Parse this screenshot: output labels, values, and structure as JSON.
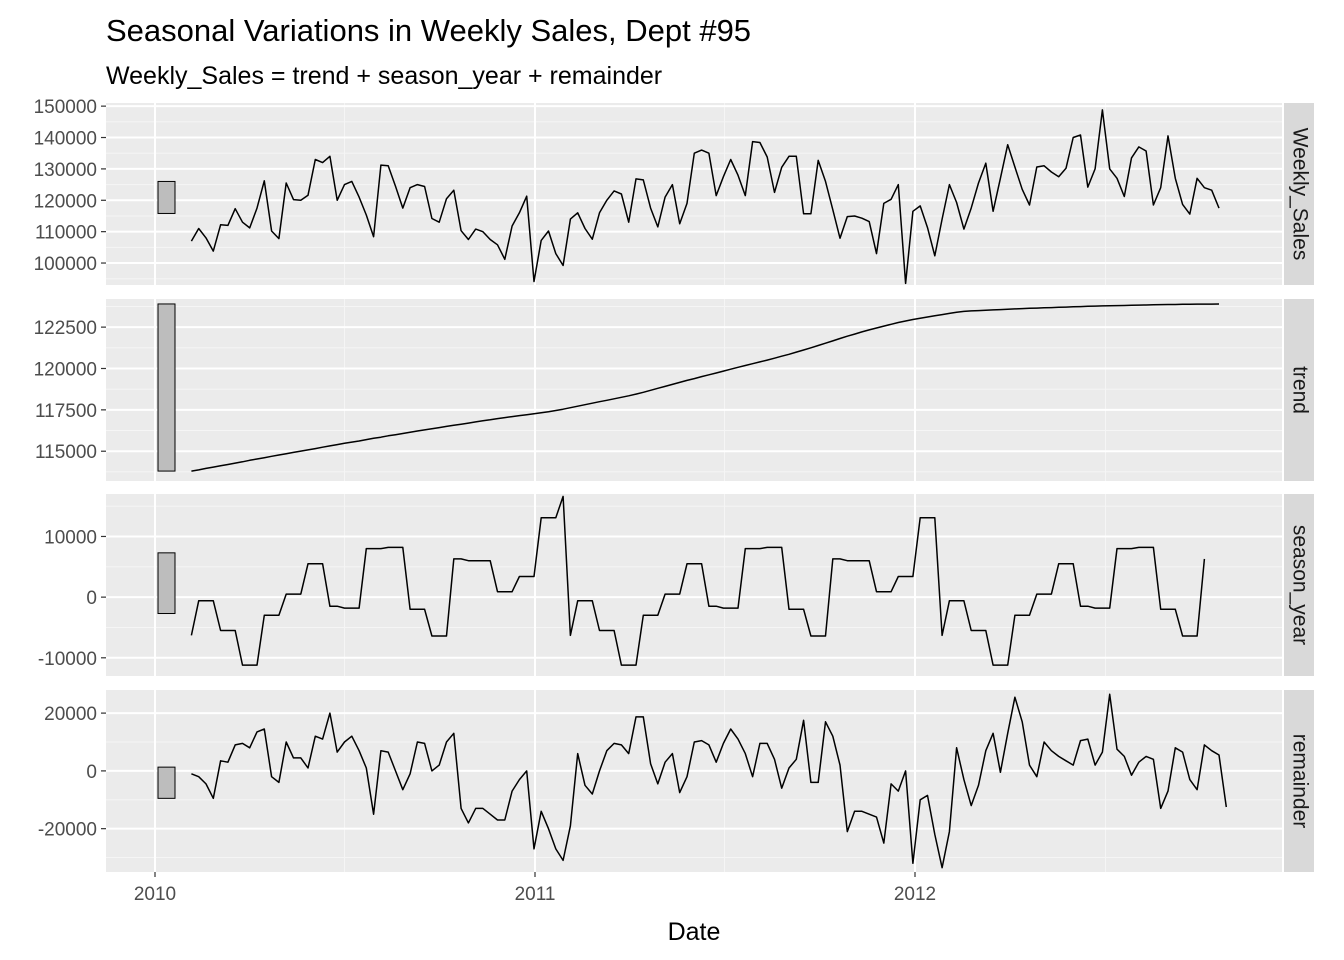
{
  "chart_data": {
    "type": "line",
    "title": "Seasonal Variations in Weekly Sales, Dept #95",
    "subtitle": "Weekly_Sales = trend + season_year + remainder",
    "xlabel": "Date",
    "x_ticks": [
      "2010",
      "2011",
      "2012"
    ],
    "x_start": "2010-02-05",
    "x_step_days": 7,
    "grid": true,
    "panels": [
      {
        "name": "Weekly_Sales",
        "ylim": [
          93000,
          151000
        ],
        "y_ticks": [
          100000,
          110000,
          120000,
          130000,
          140000,
          150000
        ],
        "scale_bar": [
          115800,
          126000
        ],
        "values": [
          107000,
          111000,
          108000,
          103800,
          112200,
          112000,
          117300,
          113000,
          111200,
          117500,
          126200,
          110200,
          107800,
          125500,
          120200,
          120000,
          121600,
          133000,
          132000,
          134000,
          120000,
          125000,
          126000,
          121000,
          115300,
          108400,
          131200,
          131000,
          124500,
          117500,
          124000,
          125000,
          124400,
          114200,
          113000,
          120500,
          123200,
          110300,
          107500,
          110800,
          110000,
          107500,
          105800,
          101200,
          111800,
          116000,
          121300,
          94100,
          107200,
          110200,
          103000,
          99200,
          114000,
          116000,
          111000,
          107600,
          116000,
          120000,
          123000,
          122000,
          113000,
          126800,
          126500,
          117500,
          111500,
          121000,
          125000,
          112500,
          119000,
          135000,
          136000,
          135000,
          121500,
          127500,
          133000,
          128000,
          121500,
          138700,
          138400,
          133800,
          122500,
          130500,
          134000,
          134000,
          115700,
          115700,
          132700,
          126000,
          117000,
          107900,
          114800,
          115000,
          114300,
          113200,
          103000,
          119000,
          120300,
          125000,
          93500,
          116500,
          118200,
          111300,
          102300,
          114000,
          125000,
          119300,
          110800,
          117500,
          125500,
          131800,
          116500,
          127000,
          137700,
          130600,
          123500,
          118500,
          130600,
          131000,
          129000,
          127500,
          130200,
          140000,
          140800,
          124200,
          130000,
          148800,
          130000,
          127000,
          121200,
          133500,
          137000,
          135700,
          118500,
          124000,
          140500,
          127000,
          118700,
          115600,
          127000,
          124000,
          123200,
          117500
        ]
      },
      {
        "name": "trend",
        "ylim": [
          113200,
          124200
        ],
        "y_ticks": [
          115000,
          117500,
          120000,
          122500
        ],
        "y_tick_labels": [
          "115000",
          "117500",
          "120000",
          "122500"
        ],
        "scale_bar": [
          113800,
          123900
        ],
        "values": [
          113800,
          113870,
          113960,
          114040,
          114120,
          114200,
          114280,
          114360,
          114450,
          114530,
          114610,
          114690,
          114770,
          114850,
          114930,
          115010,
          115080,
          115160,
          115240,
          115320,
          115400,
          115480,
          115550,
          115620,
          115700,
          115780,
          115850,
          115930,
          116000,
          116070,
          116150,
          116220,
          116290,
          116360,
          116430,
          116500,
          116570,
          116630,
          116700,
          116770,
          116840,
          116900,
          116970,
          117030,
          117090,
          117150,
          117210,
          117270,
          117330,
          117390,
          117460,
          117540,
          117630,
          117720,
          117810,
          117900,
          117990,
          118080,
          118170,
          118260,
          118350,
          118450,
          118560,
          118680,
          118800,
          118920,
          119040,
          119160,
          119280,
          119390,
          119510,
          119620,
          119730,
          119840,
          119960,
          120070,
          120180,
          120290,
          120400,
          120510,
          120620,
          120740,
          120860,
          120990,
          121120,
          121250,
          121390,
          121530,
          121670,
          121810,
          121950,
          122080,
          122210,
          122330,
          122450,
          122560,
          122670,
          122780,
          122870,
          122960,
          123040,
          123110,
          123190,
          123260,
          123330,
          123400,
          123450,
          123480,
          123500,
          123520,
          123540,
          123560,
          123580,
          123600,
          123620,
          123640,
          123650,
          123670,
          123680,
          123700,
          123710,
          123730,
          123740,
          123760,
          123770,
          123780,
          123790,
          123800,
          123810,
          123820,
          123830,
          123840,
          123850,
          123860,
          123870,
          123870,
          123880,
          123880,
          123890,
          123890,
          123890,
          123900
        ]
      },
      {
        "name": "season_year",
        "ylim": [
          -13000,
          17000
        ],
        "y_ticks": [
          -10000,
          0,
          10000
        ],
        "scale_bar": [
          -2700,
          7300
        ],
        "values": [
          -6300,
          -600,
          -600,
          -600,
          -5500,
          -5500,
          -5500,
          -11200,
          -11200,
          -11200,
          -3000,
          -3000,
          -3000,
          500,
          500,
          500,
          5500,
          5500,
          5500,
          -1500,
          -1500,
          -1800,
          -1800,
          -1800,
          8000,
          8000,
          8000,
          8200,
          8200,
          8200,
          -2000,
          -2000,
          -2000,
          -6400,
          -6400,
          -6400,
          6300,
          6300,
          6000,
          6000,
          6000,
          6000,
          900,
          900,
          900,
          3400,
          3400,
          3400,
          13100,
          13100,
          13100,
          16600,
          -6300,
          -600,
          -600,
          -600,
          -5500,
          -5500,
          -5500,
          -11200,
          -11200,
          -11200,
          -3000,
          -3000,
          -3000,
          500,
          500,
          500,
          5500,
          5500,
          5500,
          -1500,
          -1500,
          -1800,
          -1800,
          -1800,
          8000,
          8000,
          8000,
          8200,
          8200,
          8200,
          -2000,
          -2000,
          -2000,
          -6400,
          -6400,
          -6400,
          6300,
          6300,
          6000,
          6000,
          6000,
          6000,
          900,
          900,
          900,
          3400,
          3400,
          3400,
          13100,
          13100,
          13100,
          -6300,
          -600,
          -600,
          -600,
          -5500,
          -5500,
          -5500,
          -11200,
          -11200,
          -11200,
          -3000,
          -3000,
          -3000,
          500,
          500,
          500,
          5500,
          5500,
          5500,
          -1500,
          -1500,
          -1800,
          -1800,
          -1800,
          8000,
          8000,
          8000,
          8200,
          8200,
          8200,
          -2000,
          -2000,
          -2000,
          -6400,
          -6400,
          -6400,
          6300
        ]
      },
      {
        "name": "remainder",
        "ylim": [
          -35000,
          28000
        ],
        "y_ticks": [
          -20000,
          0,
          20000
        ],
        "scale_bar": [
          -9500,
          1300
        ],
        "values": [
          -1000,
          -2000,
          -4500,
          -9500,
          3500,
          3000,
          9000,
          9500,
          8000,
          13500,
          14500,
          -2000,
          -4000,
          10000,
          4500,
          4500,
          1000,
          12000,
          11000,
          20000,
          6500,
          10000,
          12000,
          7000,
          1000,
          -15000,
          7000,
          6500,
          0,
          -6500,
          -1000,
          10000,
          9500,
          0,
          2000,
          10000,
          13000,
          -13000,
          -18000,
          -13000,
          -13000,
          -15000,
          -17000,
          -17000,
          -7000,
          -3000,
          0,
          -27000,
          -14000,
          -20000,
          -27000,
          -31000,
          -19000,
          6000,
          -5000,
          -8000,
          0,
          7000,
          9500,
          9000,
          6000,
          18700,
          18700,
          2500,
          -4500,
          3000,
          6000,
          -7500,
          -2000,
          10000,
          10500,
          9000,
          3000,
          9500,
          14500,
          11000,
          6000,
          -2000,
          9500,
          9500,
          4000,
          -6000,
          1000,
          4000,
          17500,
          -4000,
          -4000,
          17000,
          12000,
          2000,
          -21000,
          -14000,
          -14000,
          -15000,
          -16000,
          -25000,
          -4500,
          -7000,
          0,
          -32000,
          -10000,
          -8500,
          -22000,
          -33500,
          -21000,
          8000,
          -3000,
          -12000,
          -5000,
          7000,
          13000,
          -500,
          13000,
          25500,
          17000,
          2000,
          -2000,
          10000,
          7000,
          5000,
          3500,
          2000,
          10500,
          11000,
          2000,
          6500,
          26500,
          7500,
          5000,
          -1500,
          3000,
          5000,
          4000,
          -13000,
          -7000,
          8000,
          6500,
          -3000,
          -6500,
          9000,
          7000,
          5500,
          -12500
        ]
      }
    ]
  }
}
